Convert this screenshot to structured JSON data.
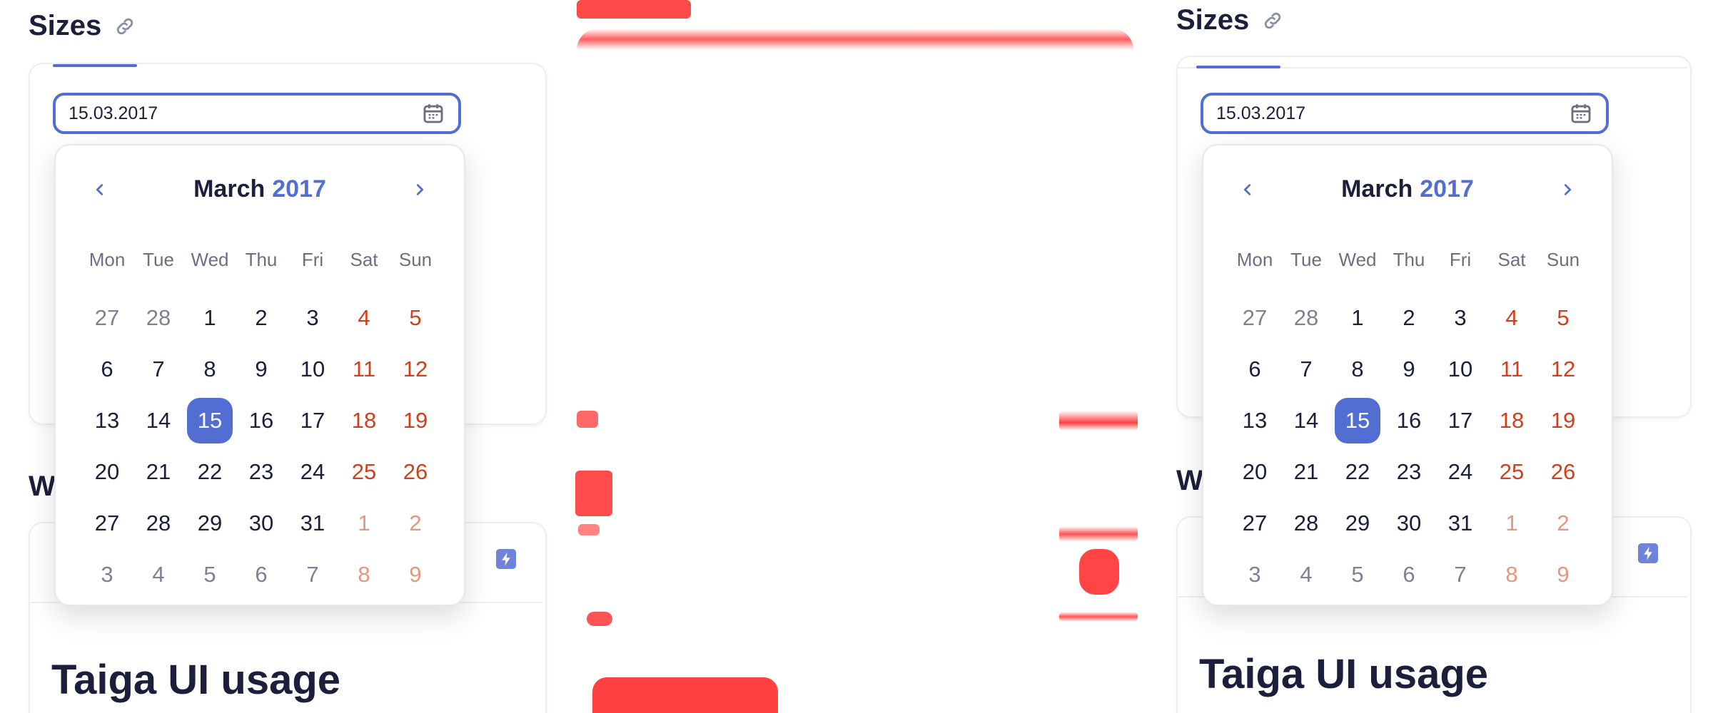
{
  "section_title": "Sizes",
  "next_section_initial": "W",
  "date_value": "15.03.2017",
  "calendar": {
    "month": "March",
    "year": "2017",
    "weekdays": [
      "Mon",
      "Tue",
      "Wed",
      "Thu",
      "Fri",
      "Sat",
      "Sun"
    ],
    "days": [
      {
        "d": "27",
        "t": "other"
      },
      {
        "d": "28",
        "t": "other"
      },
      {
        "d": "1",
        "t": "cur"
      },
      {
        "d": "2",
        "t": "cur"
      },
      {
        "d": "3",
        "t": "cur"
      },
      {
        "d": "4",
        "t": "weekend"
      },
      {
        "d": "5",
        "t": "weekend"
      },
      {
        "d": "6",
        "t": "cur"
      },
      {
        "d": "7",
        "t": "cur"
      },
      {
        "d": "8",
        "t": "cur"
      },
      {
        "d": "9",
        "t": "cur"
      },
      {
        "d": "10",
        "t": "cur"
      },
      {
        "d": "11",
        "t": "weekend"
      },
      {
        "d": "12",
        "t": "weekend"
      },
      {
        "d": "13",
        "t": "cur"
      },
      {
        "d": "14",
        "t": "cur"
      },
      {
        "d": "15",
        "t": "selected"
      },
      {
        "d": "16",
        "t": "cur"
      },
      {
        "d": "17",
        "t": "cur"
      },
      {
        "d": "18",
        "t": "weekend"
      },
      {
        "d": "19",
        "t": "weekend"
      },
      {
        "d": "20",
        "t": "cur"
      },
      {
        "d": "21",
        "t": "cur"
      },
      {
        "d": "22",
        "t": "cur"
      },
      {
        "d": "23",
        "t": "cur"
      },
      {
        "d": "24",
        "t": "cur"
      },
      {
        "d": "25",
        "t": "weekend"
      },
      {
        "d": "26",
        "t": "weekend"
      },
      {
        "d": "27",
        "t": "cur"
      },
      {
        "d": "28",
        "t": "cur"
      },
      {
        "d": "29",
        "t": "cur"
      },
      {
        "d": "30",
        "t": "cur"
      },
      {
        "d": "31",
        "t": "cur"
      },
      {
        "d": "1",
        "t": "weekend-other"
      },
      {
        "d": "2",
        "t": "weekend-other"
      },
      {
        "d": "3",
        "t": "other"
      },
      {
        "d": "4",
        "t": "other"
      },
      {
        "d": "5",
        "t": "other"
      },
      {
        "d": "6",
        "t": "other"
      },
      {
        "d": "7",
        "t": "other"
      },
      {
        "d": "8",
        "t": "weekend-other"
      },
      {
        "d": "9",
        "t": "weekend-other"
      }
    ]
  },
  "card_title": "Taiga UI usage",
  "colors": {
    "accent": "#526ed3",
    "weekend": "#d1401a",
    "weekend_muted": "#e8957d",
    "text": "#1b1f3b",
    "diff": "#ff0000"
  },
  "icons": {
    "link": "link-icon",
    "calendar": "calendar-icon",
    "prev": "chevron-left-icon",
    "next": "chevron-right-icon",
    "bolt": "lightning-icon"
  }
}
